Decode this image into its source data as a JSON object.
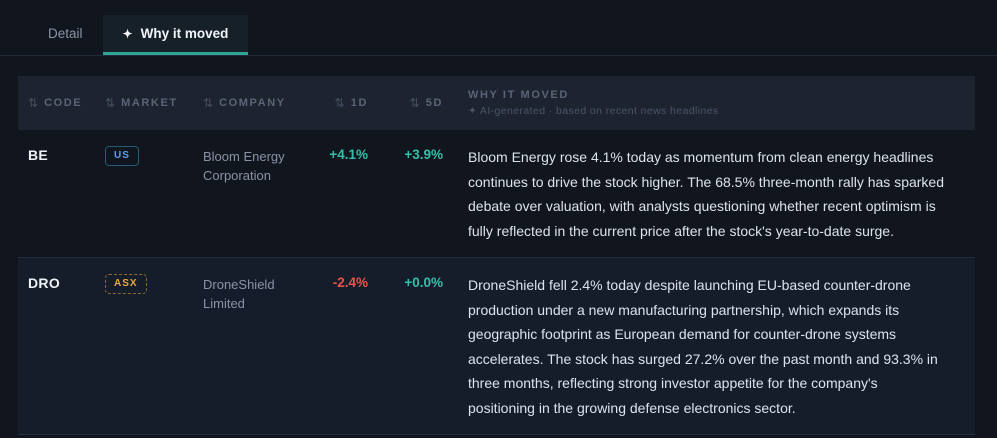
{
  "tabs": [
    {
      "label": "Detail"
    },
    {
      "label": "Why it moved",
      "icon": "✦"
    }
  ],
  "icons": {
    "sort": "⇅",
    "sparkle": "✦"
  },
  "table": {
    "header": {
      "code": "CODE",
      "market": "MARKET",
      "company": "COMPANY",
      "d1": "1D",
      "d5": "5D",
      "why": "WHY IT MOVED",
      "why_subtitle": "✦ AI-generated · based on recent news headlines"
    },
    "rows": [
      {
        "code": "BE",
        "market": "US",
        "company": "Bloom Energy Corporation",
        "d1": "+4.1%",
        "d5": "+3.9%",
        "why": "Bloom Energy rose 4.1% today as momentum from clean energy headlines continues to drive the stock higher. The 68.5% three-month rally has sparked debate over valuation, with analysts questioning whether recent optimism is fully reflected in the current price after the stock's year-to-date surge."
      },
      {
        "code": "DRO",
        "market": "ASX",
        "company": "DroneShield Limited",
        "d1": "-2.4%",
        "d5": "+0.0%",
        "why": "DroneShield fell 2.4% today despite launching EU-based counter-drone production under a new manufacturing partnership, which expands its geographic footprint as European demand for counter-drone systems accelerates. The stock has surged 27.2% over the past month and 93.3% in three months, reflecting strong investor appetite for the company's positioning in the growing defense electronics sector."
      }
    ]
  },
  "colors": {
    "page-bg": "#10151e",
    "accent": "#31a392",
    "positive": "#35bfa8",
    "negative": "#e8554b",
    "badge-us": "#5b9ff2",
    "badge-asx": "#eca53a"
  }
}
